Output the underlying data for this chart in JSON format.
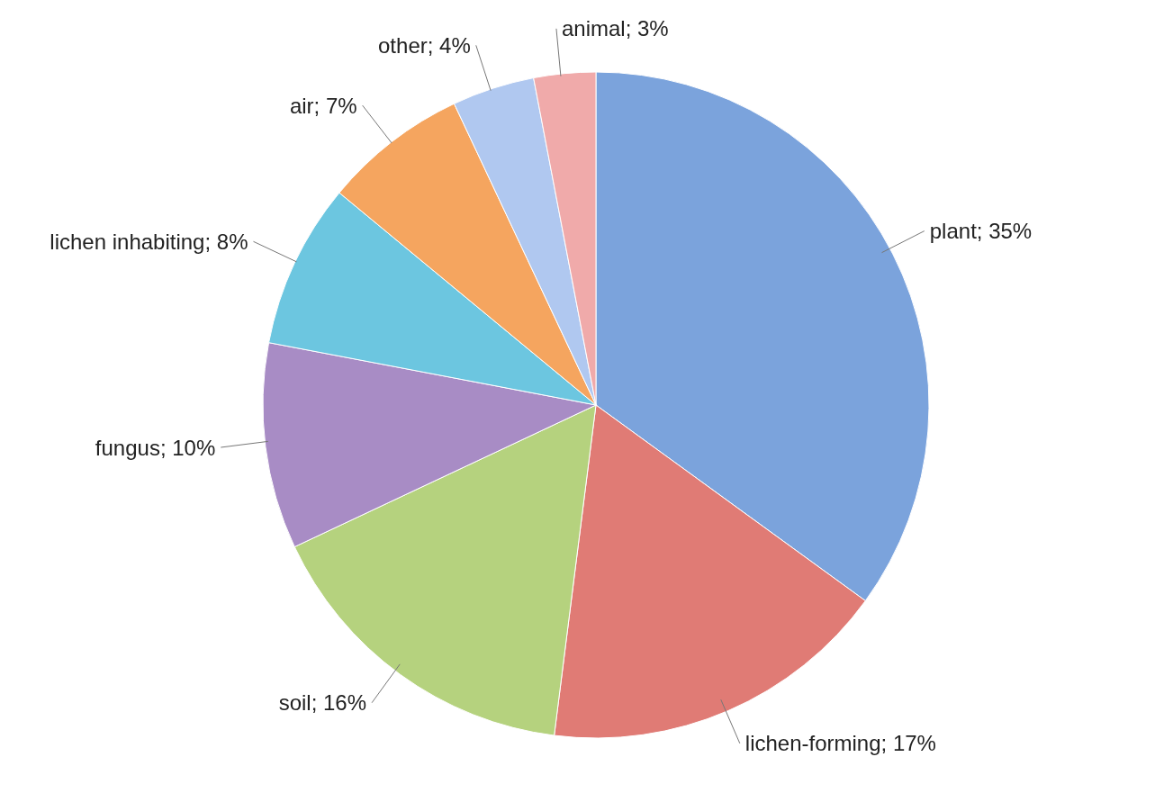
{
  "chart_data": {
    "type": "pie",
    "categories": [
      "plant",
      "lichen-forming",
      "soil",
      "fungus",
      "lichen inhabiting",
      "air",
      "other",
      "animal"
    ],
    "values": [
      35,
      17,
      16,
      10,
      8,
      7,
      4,
      3
    ],
    "value_labels": [
      "35%",
      "17%",
      "16%",
      "10%",
      "8%",
      "7%",
      "4%",
      "3%"
    ],
    "colors": [
      "#7ba3dc",
      "#e07b75",
      "#b5d27e",
      "#a88cc5",
      "#6cc6e0",
      "#f5a55f",
      "#b0c8f0",
      "#f0aaaa"
    ],
    "legend": false
  }
}
